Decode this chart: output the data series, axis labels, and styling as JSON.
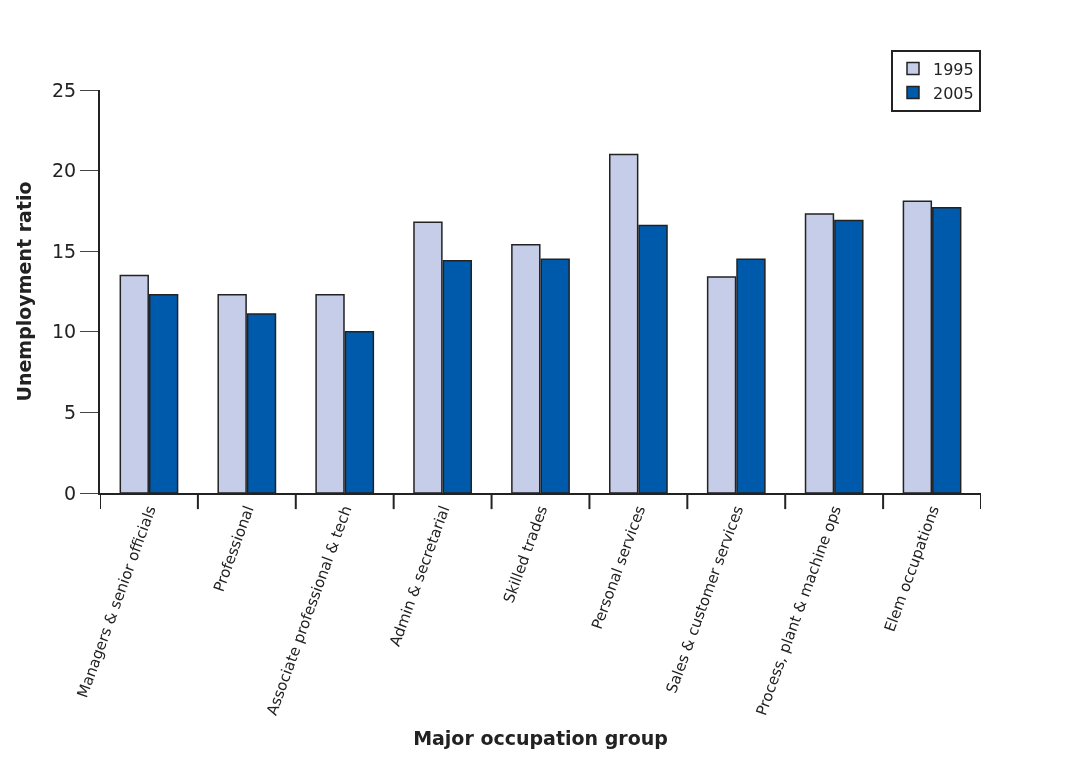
{
  "chart_data": {
    "type": "bar",
    "xlabel": "Major occupation group",
    "ylabel": "Unemployment ratio",
    "categories": [
      "Managers & senior officials",
      "Professional",
      "Associate professional & tech",
      "Admin & secretarial",
      "Skilled trades",
      "Personal services",
      "Sales & customer services",
      "Process, plant & machine ops",
      "Elem occupations"
    ],
    "series": [
      {
        "name": "1995",
        "color": "#c6cde8",
        "values": [
          13.5,
          12.3,
          12.3,
          16.8,
          15.4,
          21.0,
          13.4,
          17.3,
          18.1
        ]
      },
      {
        "name": "2005",
        "color": "#005aab",
        "values": [
          12.3,
          11.1,
          10.0,
          14.4,
          14.5,
          16.6,
          14.5,
          16.9,
          17.7
        ]
      }
    ],
    "ylim": [
      0,
      25
    ],
    "yticks": [
      0,
      5,
      10,
      15,
      20,
      25
    ],
    "legend": "top right"
  }
}
